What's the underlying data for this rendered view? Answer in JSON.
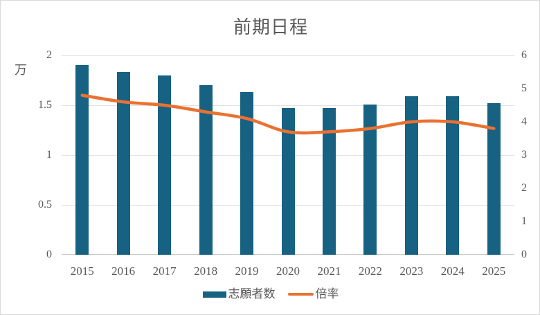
{
  "chart_data": {
    "type": "bar",
    "subtype": "combo-bar-line",
    "title": "前期日程",
    "categories": [
      "2015",
      "2016",
      "2017",
      "2018",
      "2019",
      "2020",
      "2021",
      "2022",
      "2023",
      "2024",
      "2025"
    ],
    "series": [
      {
        "name": "志願者数",
        "type": "bar",
        "axis": "left",
        "color": "#176183",
        "values": [
          1.9,
          1.83,
          1.8,
          1.7,
          1.63,
          1.47,
          1.47,
          1.51,
          1.59,
          1.59,
          1.52
        ]
      },
      {
        "name": "倍率",
        "type": "line",
        "axis": "right",
        "color": "#e97132",
        "smooth": true,
        "values": [
          4.8,
          4.6,
          4.5,
          4.3,
          4.1,
          3.7,
          3.7,
          3.8,
          4.0,
          4.0,
          3.8
        ]
      }
    ],
    "left_axis": {
      "display_unit_label": "万",
      "min": 0,
      "max": 2,
      "step": 0.5,
      "tick_labels": [
        "2",
        "1.5",
        "1",
        "0.5",
        "0"
      ]
    },
    "right_axis": {
      "min": 0,
      "max": 6,
      "step": 1,
      "tick_labels": [
        "6",
        "5",
        "4",
        "3",
        "2",
        "1",
        "0"
      ]
    },
    "grid": "horizontal",
    "legend_position": "bottom"
  },
  "colors": {
    "bar": "#176183",
    "line": "#e97132",
    "text": "#595959",
    "gridline": "#e2e2e2",
    "axis_line": "#c9c9c9",
    "border": "#d9d9d9",
    "background": "#ffffff"
  }
}
